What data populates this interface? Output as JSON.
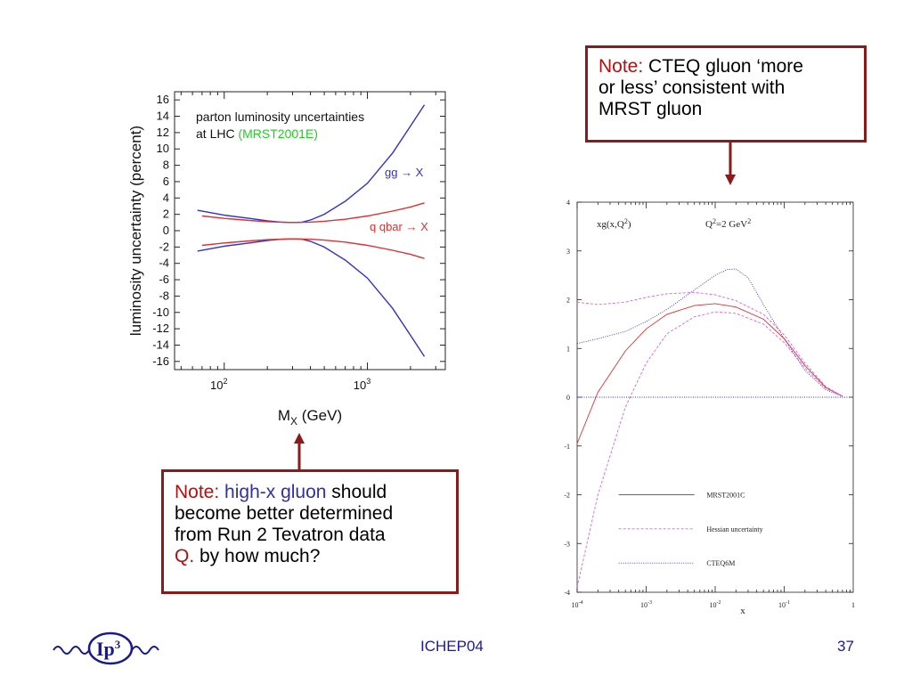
{
  "note_top": {
    "prefix": "Note:",
    "text_line1": " CTEQ gluon ‘more",
    "text_line2": "or less’ consistent with",
    "text_line3": "MRST gluon"
  },
  "note_bottom": {
    "prefix": "Note:",
    "highlight": "high-x gluon",
    "line1_rest": " should",
    "line2": "become better determined",
    "line3": "from Run 2 Tevatron data",
    "q_prefix": "Q.",
    "q_rest": " by how much?"
  },
  "footer": {
    "conference": "ICHEP04",
    "page_number": "37",
    "logo_text": "Ip",
    "logo_sup": "3"
  },
  "colors": {
    "note_border": "#8b1a1a",
    "note_red": "#b01010",
    "note_blue": "#3030a0",
    "footer_blue": "#1a1aa0",
    "series_red": "#e03030",
    "series_blue": "#3030d0",
    "green_text": "#22cc22",
    "magenta": "#e060e0"
  },
  "chart_data": [
    {
      "type": "line",
      "title_line1": "parton luminosity uncertainties",
      "title_line2_prefix": "at LHC ",
      "title_line2_green": "(MRST2001E)",
      "xlabel_main": "M",
      "xlabel_sub": "X",
      "xlabel_rest": " (GeV)",
      "ylabel": "luminosity uncertainty (percent)",
      "x_scale": "log",
      "xlim": [
        45,
        3500
      ],
      "ylim": [
        -17,
        17
      ],
      "y_ticks": [
        16,
        14,
        12,
        10,
        8,
        6,
        4,
        2,
        0,
        -2,
        -4,
        -6,
        -8,
        -10,
        -12,
        -14,
        -16
      ],
      "x_ticks_major": [
        {
          "value": 100,
          "base": "10",
          "exp": "2"
        },
        {
          "value": 1000,
          "base": "10",
          "exp": "3"
        }
      ],
      "annotations": [
        {
          "text": "gg → X",
          "color": "#3030d0"
        },
        {
          "text": "q qbar → X",
          "color": "#e03030"
        }
      ],
      "series": [
        {
          "name": "gg → X",
          "color": "#3030d0",
          "x": [
            65,
            100,
            150,
            200,
            250,
            300,
            350,
            400,
            500,
            700,
            1000,
            1500,
            2000,
            2500
          ],
          "upper": [
            2.5,
            1.9,
            1.5,
            1.2,
            1.05,
            1.0,
            1.05,
            1.3,
            2.0,
            3.6,
            5.8,
            9.5,
            12.8,
            15.4
          ],
          "lower": [
            -2.5,
            -1.9,
            -1.5,
            -1.2,
            -1.05,
            -1.0,
            -1.05,
            -1.3,
            -2.0,
            -3.6,
            -5.8,
            -9.5,
            -12.8,
            -15.4
          ]
        },
        {
          "name": "q qbar → X",
          "color": "#e03030",
          "x": [
            70,
            100,
            150,
            200,
            300,
            400,
            500,
            700,
            1000,
            1500,
            2000,
            2500
          ],
          "upper": [
            1.8,
            1.5,
            1.25,
            1.1,
            1.0,
            1.05,
            1.15,
            1.4,
            1.8,
            2.4,
            2.9,
            3.4
          ],
          "lower": [
            -1.8,
            -1.5,
            -1.25,
            -1.1,
            -1.0,
            -1.05,
            -1.15,
            -1.4,
            -1.8,
            -2.4,
            -2.9,
            -3.4
          ]
        }
      ]
    },
    {
      "type": "line",
      "title_left": "xg(x,Q",
      "title_left_sup": "2",
      "title_left_end": ")",
      "title_right": "Q",
      "title_right_sup": "2",
      "title_right_mid": "=2 GeV",
      "title_right_sup2": "2",
      "xlabel": "x",
      "x_scale": "log",
      "xlim": [
        0.0001,
        1
      ],
      "ylim": [
        -4,
        4
      ],
      "y_ticks": [
        "4",
        "3",
        "2",
        "1",
        "0",
        "-1",
        "-2",
        "-3",
        "-4"
      ],
      "x_ticks": [
        {
          "value": 0.0001,
          "base": "10",
          "exp": "-4"
        },
        {
          "value": 0.001,
          "base": "10",
          "exp": "-3"
        },
        {
          "value": 0.01,
          "base": "10",
          "exp": "-2"
        },
        {
          "value": 0.1,
          "base": "10",
          "exp": "-1"
        },
        {
          "value": 1,
          "base": "1",
          "exp": ""
        }
      ],
      "legend": [
        {
          "name": "MRST2001C",
          "color": "#e03030",
          "style": "solid"
        },
        {
          "name": "Hessian uncertainty",
          "color": "#e060e0",
          "style": "dashed"
        },
        {
          "name": "CTEQ6M",
          "color": "#3030d0",
          "style": "dotted"
        }
      ],
      "series": [
        {
          "name": "MRST2001C",
          "color": "#e03030",
          "style": "solid",
          "x": [
            0.0001,
            0.0002,
            0.0005,
            0.001,
            0.002,
            0.005,
            0.01,
            0.02,
            0.05,
            0.1,
            0.2,
            0.4,
            0.7
          ],
          "y": [
            -0.95,
            0.1,
            0.95,
            1.4,
            1.7,
            1.88,
            1.92,
            1.85,
            1.6,
            1.2,
            0.65,
            0.2,
            0.02
          ]
        },
        {
          "name": "Hessian upper",
          "color": "#e060e0",
          "style": "dashed",
          "x": [
            0.0001,
            0.0002,
            0.0005,
            0.001,
            0.002,
            0.005,
            0.01,
            0.02,
            0.05,
            0.1,
            0.2,
            0.4,
            0.7
          ],
          "y": [
            1.95,
            1.9,
            1.95,
            2.05,
            2.12,
            2.15,
            2.1,
            1.98,
            1.7,
            1.28,
            0.7,
            0.22,
            0.02
          ]
        },
        {
          "name": "Hessian lower",
          "color": "#e060e0",
          "style": "dashed",
          "x": [
            0.0001,
            0.0002,
            0.0005,
            0.001,
            0.002,
            0.005,
            0.01,
            0.02,
            0.05,
            0.1,
            0.2,
            0.4,
            0.7
          ],
          "y": [
            -3.9,
            -2.0,
            -0.2,
            0.7,
            1.3,
            1.65,
            1.75,
            1.72,
            1.5,
            1.12,
            0.6,
            0.18,
            0.02
          ]
        },
        {
          "name": "CTEQ6M",
          "color": "#3030d0",
          "style": "dotted",
          "x": [
            0.0001,
            0.0002,
            0.0005,
            0.001,
            0.002,
            0.005,
            0.01,
            0.015,
            0.02,
            0.03,
            0.05,
            0.1,
            0.2,
            0.4,
            0.7
          ],
          "y": [
            1.1,
            1.2,
            1.35,
            1.55,
            1.8,
            2.2,
            2.5,
            2.62,
            2.63,
            2.45,
            1.9,
            1.2,
            0.55,
            0.15,
            0.02
          ]
        },
        {
          "name": "zero",
          "color": "#3030d0",
          "style": "dotted",
          "x": [
            0.0001,
            1
          ],
          "y": [
            0,
            0
          ]
        }
      ]
    }
  ]
}
